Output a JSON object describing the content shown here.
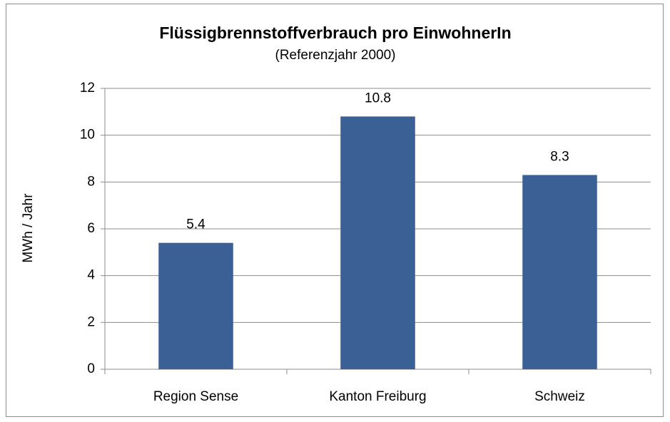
{
  "chart_data": {
    "type": "bar",
    "title": "Flüssigbrennstoffverbrauch pro EinwohnerIn",
    "subtitle": "(Referenzjahr 2000)",
    "y_label": "MWh / Jahr",
    "categories": [
      "Region Sense",
      "Kanton Freiburg",
      "Schweiz"
    ],
    "values": [
      5.4,
      10.8,
      8.3
    ],
    "color": "#3a6095",
    "ylim": [
      0,
      12
    ],
    "yticks": [
      0,
      2,
      4,
      6,
      8,
      10,
      12
    ],
    "grid": true
  }
}
